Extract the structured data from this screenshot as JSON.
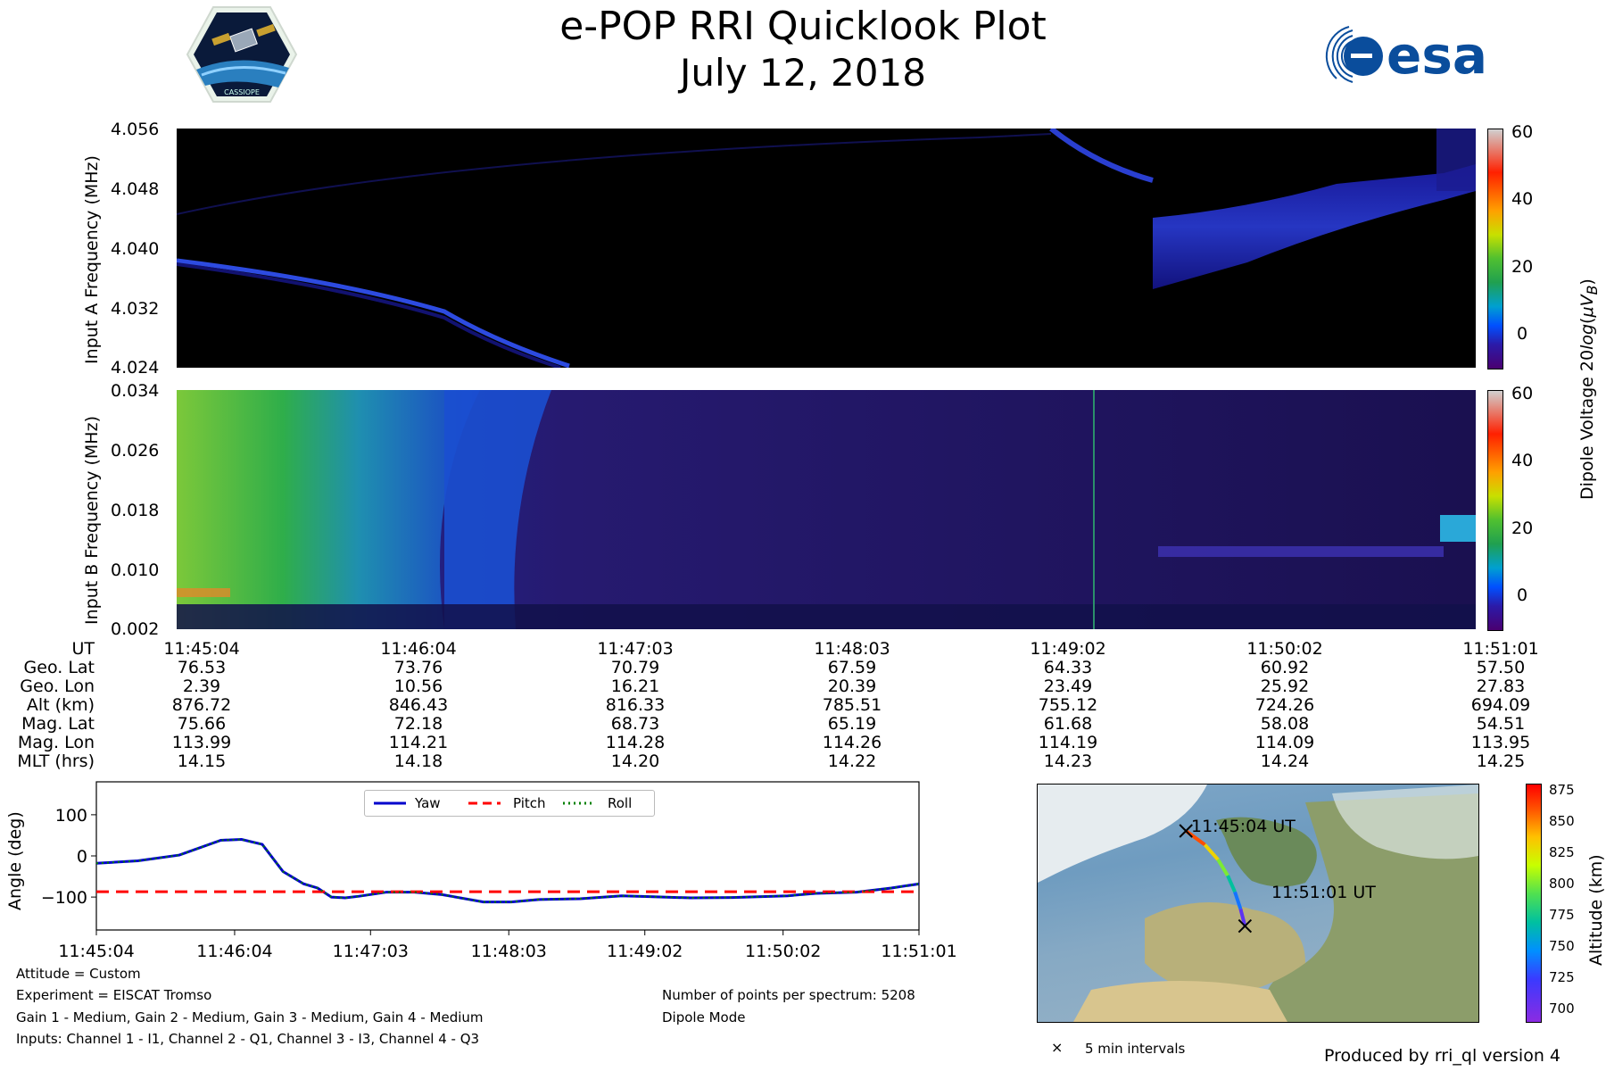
{
  "header": {
    "title": "e-POP RRI Quicklook Plot",
    "subtitle": "July 12, 2018",
    "left_logo": "CASSIOPE mission patch",
    "left_logo_text": "CASSIOPE",
    "right_logo": "esa",
    "esa_text": "esa"
  },
  "panel_a": {
    "ylabel": "Input A Frequency (MHz)",
    "yticks": [
      "4.056",
      "4.048",
      "4.040",
      "4.032",
      "4.024"
    ]
  },
  "panel_b": {
    "ylabel": "Input B Frequency (MHz)",
    "yticks": [
      "0.034",
      "0.026",
      "0.018",
      "0.010",
      "0.002"
    ]
  },
  "colorbar": {
    "label": "Dipole Voltage 20log(μV_B)",
    "label_main": "Dipole Voltage 20",
    "label_italic": "log",
    "label_paren_open": "(",
    "label_mu": "μV",
    "label_sub": "B",
    "label_paren_close": ")",
    "ticks": [
      "60",
      "40",
      "20",
      "0"
    ]
  },
  "orbit_table": {
    "labels": [
      "UT",
      "Geo. Lat",
      "Geo. Lon",
      "Alt (km)",
      "Mag. Lat",
      "Mag. Lon",
      "MLT (hrs)"
    ],
    "columns": [
      [
        "11:45:04",
        "76.53",
        "2.39",
        "876.72",
        "75.66",
        "113.99",
        "14.15"
      ],
      [
        "11:46:04",
        "73.76",
        "10.56",
        "846.43",
        "72.18",
        "114.21",
        "14.18"
      ],
      [
        "11:47:03",
        "70.79",
        "16.21",
        "816.33",
        "68.73",
        "114.28",
        "14.20"
      ],
      [
        "11:48:03",
        "67.59",
        "20.39",
        "785.51",
        "65.19",
        "114.26",
        "14.22"
      ],
      [
        "11:49:02",
        "64.33",
        "23.49",
        "755.12",
        "61.68",
        "114.19",
        "14.23"
      ],
      [
        "11:50:02",
        "60.92",
        "25.92",
        "724.26",
        "58.08",
        "114.09",
        "14.24"
      ],
      [
        "11:51:01",
        "57.50",
        "27.83",
        "694.09",
        "54.51",
        "113.95",
        "14.25"
      ]
    ]
  },
  "chart_data": [
    {
      "type": "heatmap",
      "name": "Input A spectrogram",
      "ylabel": "Input A Frequency (MHz)",
      "ylim": [
        4.024,
        4.056
      ],
      "yticks": [
        4.056,
        4.048,
        4.04,
        4.032,
        4.024
      ],
      "xlim": [
        "11:45:04",
        "11:51:01"
      ],
      "colorbar_range": [
        -10,
        62
      ],
      "colorbar_ticks": [
        60,
        40,
        20,
        0
      ],
      "colorbar_label": "Dipole Voltage 20log(μV_B)"
    },
    {
      "type": "heatmap",
      "name": "Input B spectrogram",
      "ylabel": "Input B Frequency (MHz)",
      "ylim": [
        0.002,
        0.034
      ],
      "yticks": [
        0.034,
        0.026,
        0.018,
        0.01,
        0.002
      ],
      "xlim": [
        "11:45:04",
        "11:51:01"
      ],
      "colorbar_range": [
        -10,
        62
      ],
      "colorbar_ticks": [
        60,
        40,
        20,
        0
      ],
      "colorbar_label": "Dipole Voltage 20log(μV_B)"
    },
    {
      "type": "line",
      "name": "Attitude",
      "ylabel": "Angle (deg)",
      "ylim": [
        -180,
        180
      ],
      "yticks": [
        "100",
        "0",
        "−100"
      ],
      "ytick_values": [
        100,
        0,
        -100
      ],
      "xticks": [
        "11:45:04",
        "11:46:04",
        "11:47:03",
        "11:48:03",
        "11:49:02",
        "11:50:02",
        "11:51:01"
      ],
      "x_minutes": [
        0,
        0.3,
        0.6,
        0.9,
        1.05,
        1.2,
        1.35,
        1.5,
        1.6,
        1.7,
        1.8,
        1.9,
        2.1,
        2.3,
        2.5,
        2.8,
        3.0,
        3.2,
        3.5,
        3.8,
        4.0,
        4.3,
        4.6,
        5.0,
        5.2,
        5.5,
        5.75,
        5.95
      ],
      "series": [
        {
          "name": "Yaw",
          "color": "#0000cc",
          "style": "solid",
          "values": [
            -18,
            -12,
            2,
            38,
            40,
            28,
            -38,
            -68,
            -78,
            -100,
            -102,
            -98,
            -88,
            -88,
            -94,
            -112,
            -112,
            -106,
            -104,
            -97,
            -99,
            -102,
            -101,
            -97,
            -91,
            -88,
            -78,
            -68
          ]
        },
        {
          "name": "Pitch",
          "color": "#ff0000",
          "style": "dashed",
          "values": [
            -87,
            -87,
            -87,
            -87,
            -87,
            -87,
            -87,
            -87,
            -87,
            -87,
            -87,
            -87,
            -87,
            -87,
            -87,
            -87,
            -87,
            -87,
            -87,
            -87,
            -87,
            -87,
            -87,
            -87,
            -87,
            -87,
            -87,
            -87
          ]
        },
        {
          "name": "Roll",
          "color": "#008000",
          "style": "dotted",
          "values": [
            -18,
            -12,
            2,
            38,
            40,
            28,
            -38,
            -68,
            -78,
            -100,
            -102,
            -98,
            -88,
            -88,
            -94,
            -112,
            -112,
            -106,
            -104,
            -97,
            -99,
            -102,
            -101,
            -97,
            -91,
            -88,
            -78,
            -68
          ]
        }
      ],
      "legend": [
        "Yaw",
        "Pitch",
        "Roll"
      ],
      "legend_loc": "upper center"
    },
    {
      "type": "scatter",
      "name": "Ground track",
      "start_label": "11:45:04 UT",
      "end_label": "11:51:01 UT",
      "lat": [
        76.53,
        73.76,
        70.79,
        67.59,
        64.33,
        60.92,
        57.5
      ],
      "lon": [
        2.39,
        10.56,
        16.21,
        20.39,
        23.49,
        25.92,
        27.83
      ],
      "alt_km": [
        876.72,
        846.43,
        816.33,
        785.51,
        755.12,
        724.26,
        694.09
      ],
      "colorbar_label": "Altitude (km)",
      "colorbar_range": [
        690,
        880
      ],
      "colorbar_ticks": [
        "875",
        "850",
        "825",
        "800",
        "775",
        "750",
        "725",
        "700"
      ],
      "legend_marker": "×",
      "legend_text": "5 min intervals"
    }
  ],
  "footer": {
    "left": [
      "Attitude = Custom",
      "Experiment = EISCAT Tromso",
      "Gain 1 - Medium, Gain 2 - Medium, Gain 3 - Medium, Gain 4 - Medium",
      "Inputs: Channel 1 - I1, Channel 2 - Q1, Channel 3 - I3, Channel 4 - Q3"
    ],
    "right": [
      "Number of points per spectrum: 5208",
      "Dipole Mode"
    ],
    "produced_by": "Produced by rri_ql version 4"
  },
  "colors": {
    "yaw": "#0000cc",
    "pitch": "#ff0000",
    "roll": "#008000"
  }
}
